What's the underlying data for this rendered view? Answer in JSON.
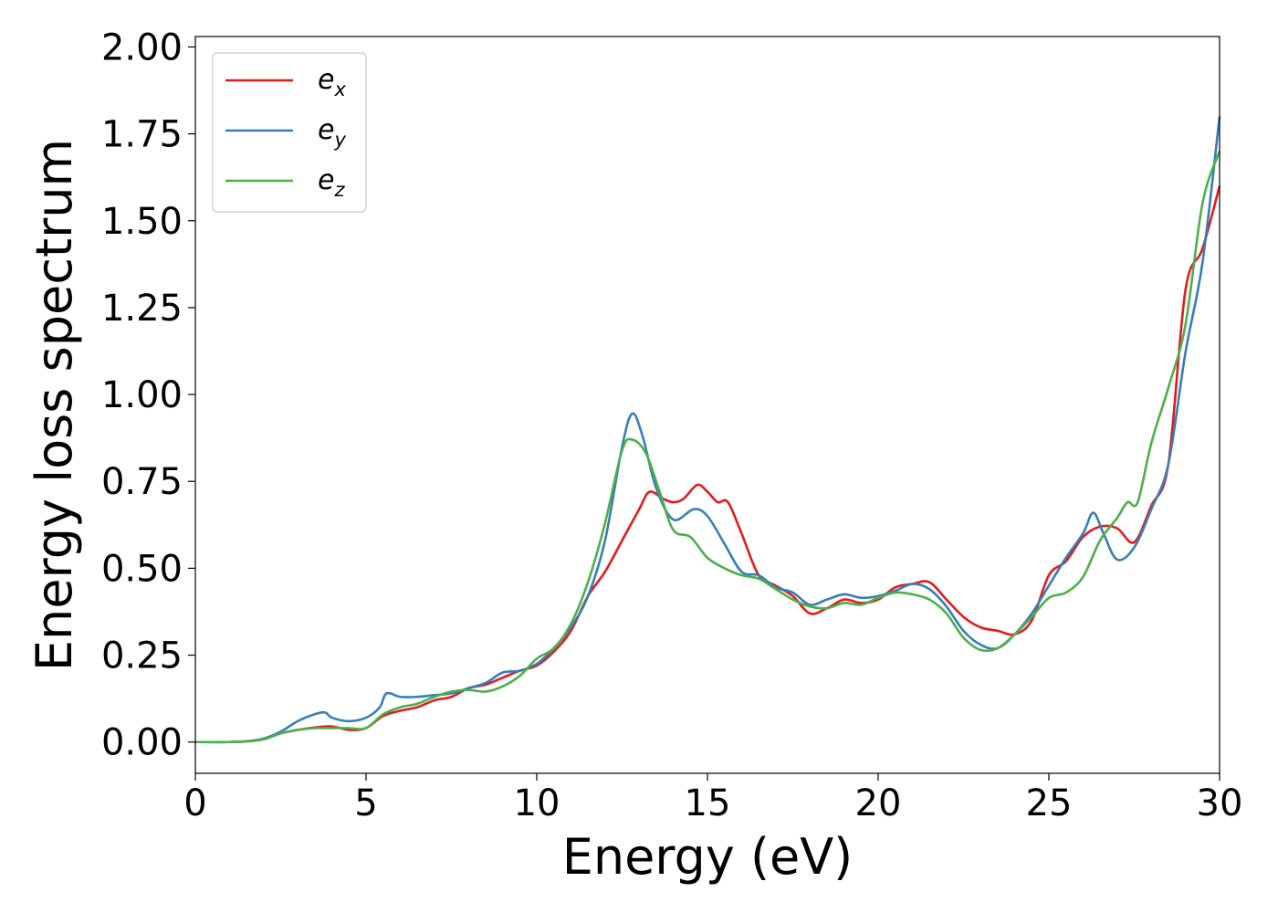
{
  "chart_data": {
    "type": "line",
    "title": "",
    "xlabel": "Energy (eV)",
    "ylabel": "Energy loss spectrum",
    "xlim": [
      0,
      30
    ],
    "ylim": [
      -0.09,
      2.03
    ],
    "xticks": [
      0,
      5,
      10,
      15,
      20,
      25,
      30
    ],
    "yticks": [
      0.0,
      0.25,
      0.5,
      0.75,
      1.0,
      1.25,
      1.5,
      1.75,
      2.0
    ],
    "xtick_labels": [
      "0",
      "5",
      "10",
      "15",
      "20",
      "25",
      "30"
    ],
    "ytick_labels": [
      "0.00",
      "0.25",
      "0.50",
      "0.75",
      "1.00",
      "1.25",
      "1.50",
      "1.75",
      "2.00"
    ],
    "grid": false,
    "legend_position": "top-left",
    "series": [
      {
        "name": "e",
        "subscript": "x",
        "color": "#e41a1c",
        "points": [
          [
            0,
            0
          ],
          [
            1,
            0
          ],
          [
            1.5,
            0.002
          ],
          [
            2,
            0.008
          ],
          [
            2.5,
            0.025
          ],
          [
            3,
            0.035
          ],
          [
            3.5,
            0.042
          ],
          [
            4,
            0.045
          ],
          [
            4.5,
            0.035
          ],
          [
            5,
            0.04
          ],
          [
            5.5,
            0.075
          ],
          [
            6,
            0.09
          ],
          [
            6.5,
            0.1
          ],
          [
            7,
            0.12
          ],
          [
            7.5,
            0.13
          ],
          [
            8,
            0.155
          ],
          [
            8.5,
            0.165
          ],
          [
            9,
            0.185
          ],
          [
            9.5,
            0.205
          ],
          [
            10,
            0.22
          ],
          [
            10.5,
            0.26
          ],
          [
            11,
            0.32
          ],
          [
            11.5,
            0.42
          ],
          [
            12,
            0.49
          ],
          [
            12.5,
            0.58
          ],
          [
            13,
            0.67
          ],
          [
            13.3,
            0.72
          ],
          [
            13.7,
            0.7
          ],
          [
            14,
            0.69
          ],
          [
            14.3,
            0.7
          ],
          [
            14.7,
            0.74
          ],
          [
            15,
            0.72
          ],
          [
            15.3,
            0.69
          ],
          [
            15.6,
            0.69
          ],
          [
            16,
            0.6
          ],
          [
            16.5,
            0.48
          ],
          [
            17,
            0.45
          ],
          [
            17.5,
            0.42
          ],
          [
            18,
            0.37
          ],
          [
            18.5,
            0.385
          ],
          [
            19,
            0.41
          ],
          [
            19.5,
            0.4
          ],
          [
            20,
            0.41
          ],
          [
            20.5,
            0.445
          ],
          [
            21,
            0.455
          ],
          [
            21.5,
            0.46
          ],
          [
            22,
            0.41
          ],
          [
            22.5,
            0.36
          ],
          [
            23,
            0.33
          ],
          [
            23.5,
            0.32
          ],
          [
            24,
            0.31
          ],
          [
            24.5,
            0.35
          ],
          [
            25,
            0.48
          ],
          [
            25.5,
            0.52
          ],
          [
            26,
            0.59
          ],
          [
            26.5,
            0.62
          ],
          [
            27,
            0.615
          ],
          [
            27.5,
            0.575
          ],
          [
            28,
            0.68
          ],
          [
            28.5,
            0.8
          ],
          [
            29,
            1.3
          ],
          [
            29.5,
            1.42
          ],
          [
            30,
            1.6
          ]
        ]
      },
      {
        "name": "e",
        "subscript": "y",
        "color": "#377eb8",
        "points": [
          [
            0,
            0
          ],
          [
            1,
            0
          ],
          [
            1.5,
            0.002
          ],
          [
            2,
            0.01
          ],
          [
            2.5,
            0.03
          ],
          [
            3,
            0.06
          ],
          [
            3.5,
            0.08
          ],
          [
            3.8,
            0.085
          ],
          [
            4,
            0.07
          ],
          [
            4.5,
            0.06
          ],
          [
            5,
            0.07
          ],
          [
            5.4,
            0.1
          ],
          [
            5.6,
            0.14
          ],
          [
            6,
            0.13
          ],
          [
            6.5,
            0.13
          ],
          [
            7,
            0.135
          ],
          [
            7.5,
            0.14
          ],
          [
            8,
            0.155
          ],
          [
            8.5,
            0.17
          ],
          [
            9,
            0.2
          ],
          [
            9.5,
            0.205
          ],
          [
            10,
            0.225
          ],
          [
            10.5,
            0.27
          ],
          [
            11,
            0.33
          ],
          [
            11.5,
            0.42
          ],
          [
            12,
            0.58
          ],
          [
            12.5,
            0.85
          ],
          [
            12.8,
            0.945
          ],
          [
            13.1,
            0.88
          ],
          [
            13.5,
            0.73
          ],
          [
            14,
            0.64
          ],
          [
            14.6,
            0.67
          ],
          [
            15,
            0.65
          ],
          [
            15.5,
            0.57
          ],
          [
            16,
            0.49
          ],
          [
            16.5,
            0.48
          ],
          [
            17,
            0.445
          ],
          [
            17.5,
            0.43
          ],
          [
            18,
            0.395
          ],
          [
            18.5,
            0.41
          ],
          [
            19,
            0.425
          ],
          [
            19.5,
            0.415
          ],
          [
            20,
            0.42
          ],
          [
            20.5,
            0.435
          ],
          [
            21,
            0.455
          ],
          [
            21.5,
            0.44
          ],
          [
            22,
            0.39
          ],
          [
            22.5,
            0.32
          ],
          [
            23,
            0.28
          ],
          [
            23.5,
            0.27
          ],
          [
            24,
            0.31
          ],
          [
            24.5,
            0.37
          ],
          [
            25,
            0.45
          ],
          [
            25.5,
            0.53
          ],
          [
            26,
            0.6
          ],
          [
            26.3,
            0.66
          ],
          [
            26.6,
            0.6
          ],
          [
            27,
            0.525
          ],
          [
            27.5,
            0.56
          ],
          [
            28,
            0.67
          ],
          [
            28.5,
            0.8
          ],
          [
            29,
            1.12
          ],
          [
            29.5,
            1.38
          ],
          [
            30,
            1.8
          ]
        ]
      },
      {
        "name": "e",
        "subscript": "z",
        "color": "#4daf4a",
        "points": [
          [
            0,
            0
          ],
          [
            1,
            0
          ],
          [
            1.5,
            0.002
          ],
          [
            2,
            0.008
          ],
          [
            2.5,
            0.025
          ],
          [
            3,
            0.035
          ],
          [
            3.5,
            0.04
          ],
          [
            4,
            0.04
          ],
          [
            4.5,
            0.04
          ],
          [
            5,
            0.04
          ],
          [
            5.5,
            0.08
          ],
          [
            6,
            0.1
          ],
          [
            6.5,
            0.11
          ],
          [
            7,
            0.13
          ],
          [
            7.5,
            0.145
          ],
          [
            8,
            0.15
          ],
          [
            8.5,
            0.145
          ],
          [
            9,
            0.16
          ],
          [
            9.5,
            0.19
          ],
          [
            10,
            0.24
          ],
          [
            10.5,
            0.27
          ],
          [
            11,
            0.34
          ],
          [
            11.5,
            0.46
          ],
          [
            12,
            0.63
          ],
          [
            12.5,
            0.84
          ],
          [
            12.8,
            0.87
          ],
          [
            13.2,
            0.83
          ],
          [
            13.6,
            0.72
          ],
          [
            14,
            0.61
          ],
          [
            14.5,
            0.59
          ],
          [
            15,
            0.53
          ],
          [
            15.5,
            0.5
          ],
          [
            16,
            0.48
          ],
          [
            16.5,
            0.47
          ],
          [
            17,
            0.44
          ],
          [
            17.5,
            0.41
          ],
          [
            18,
            0.39
          ],
          [
            18.5,
            0.385
          ],
          [
            19,
            0.4
          ],
          [
            19.5,
            0.395
          ],
          [
            20,
            0.415
          ],
          [
            20.5,
            0.43
          ],
          [
            21,
            0.425
          ],
          [
            21.5,
            0.41
          ],
          [
            22,
            0.37
          ],
          [
            22.5,
            0.3
          ],
          [
            23,
            0.265
          ],
          [
            23.5,
            0.27
          ],
          [
            24,
            0.31
          ],
          [
            24.5,
            0.36
          ],
          [
            25,
            0.415
          ],
          [
            25.5,
            0.43
          ],
          [
            26,
            0.475
          ],
          [
            26.5,
            0.58
          ],
          [
            27,
            0.645
          ],
          [
            27.3,
            0.69
          ],
          [
            27.6,
            0.69
          ],
          [
            28,
            0.86
          ],
          [
            28.5,
            1.02
          ],
          [
            29,
            1.2
          ],
          [
            29.5,
            1.55
          ],
          [
            30,
            1.7
          ]
        ]
      }
    ]
  }
}
